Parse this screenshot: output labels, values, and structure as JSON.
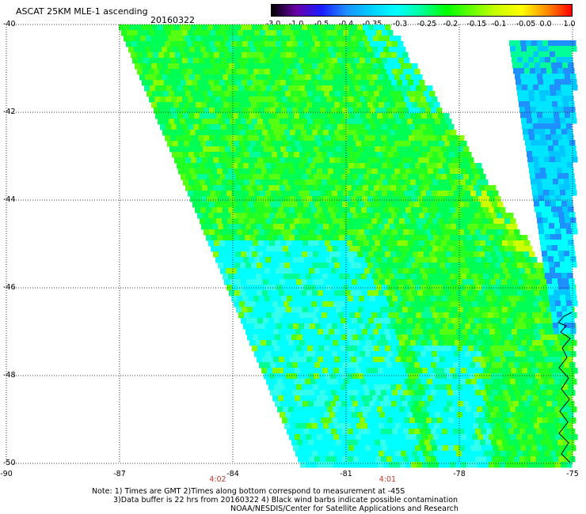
{
  "header": {
    "title": "ASCAT 25KM MLE-1 ascending",
    "date": "20160322"
  },
  "colorbar": {
    "labels": [
      "-3.0",
      "-1.0",
      "-0.5",
      "-0.4",
      "-0.35",
      "-0.3",
      "-0.25",
      "-0.2",
      "-0.15",
      "-0.1",
      "-0.05",
      "0.0",
      "1.0"
    ],
    "colors": [
      "#000000",
      "#6a00a8",
      "#1a1aff",
      "#1e90ff",
      "#00cfff",
      "#00ffff",
      "#00ff99",
      "#00ff00",
      "#66ff00",
      "#ccff00",
      "#ffff00",
      "#ff8c00",
      "#ff0000"
    ]
  },
  "axes": {
    "lat_labels": [
      "-40",
      "-42",
      "-44",
      "-46",
      "-48",
      "-50"
    ],
    "lon_labels": [
      "-90",
      "-87",
      "-84",
      "-81",
      "-78",
      "-75"
    ],
    "lat_range": [
      -50,
      -40
    ],
    "lon_range": [
      -90,
      -75
    ]
  },
  "pass_times": [
    {
      "label": "4:02",
      "lon": -84.4
    },
    {
      "label": "4:01",
      "lon": -79.9
    }
  ],
  "notes": {
    "line1": "Note: 1) Times are GMT 2)Times along bottom correspond to measurement at -45S",
    "line2": "3)Data buffer is 22 hrs from 20160322 4) Black wind barbs indicate possible contamination",
    "line3": "NOAA/NESDIS/Center for Satellite Applications and Research"
  }
}
